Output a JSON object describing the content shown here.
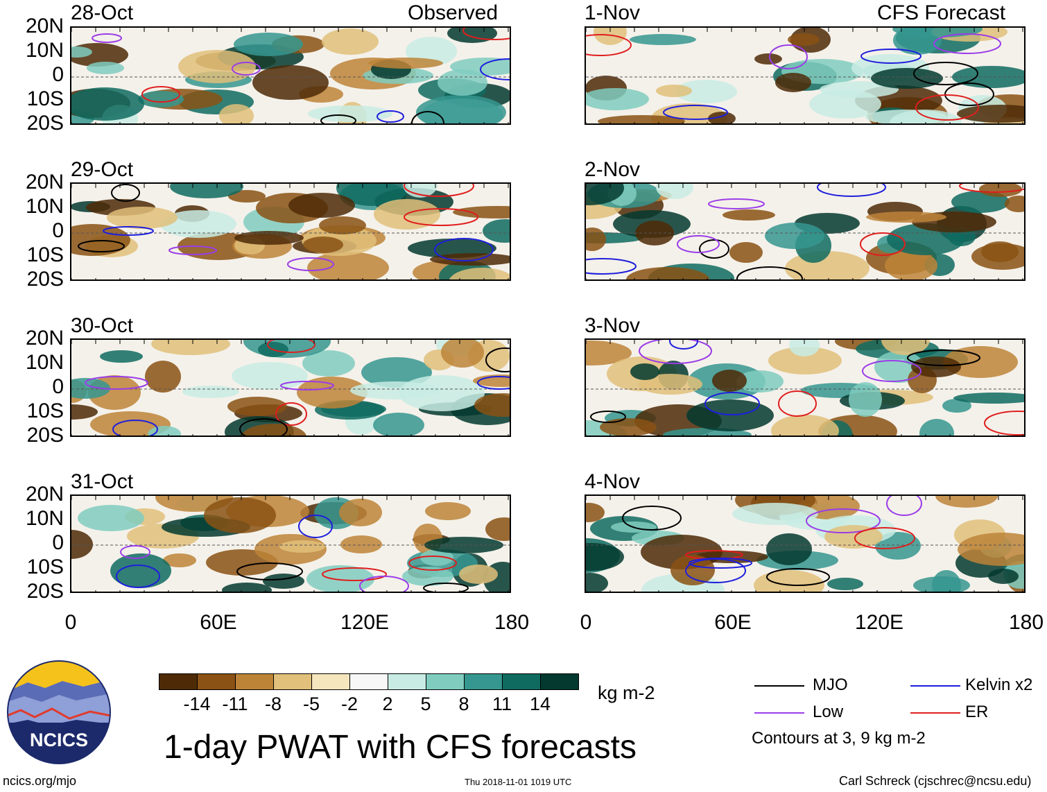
{
  "observed_label": "Observed",
  "forecast_label": "CFS Forecast",
  "panels_left": [
    {
      "date": "28-Oct"
    },
    {
      "date": "29-Oct"
    },
    {
      "date": "30-Oct"
    },
    {
      "date": "31-Oct"
    }
  ],
  "panels_right": [
    {
      "date": "1-Nov"
    },
    {
      "date": "2-Nov"
    },
    {
      "date": "3-Nov"
    },
    {
      "date": "4-Nov"
    }
  ],
  "lat_labels": [
    "20N",
    "10N",
    "0",
    "10S",
    "20S"
  ],
  "lon_labels": [
    "0",
    "60E",
    "120E",
    "180"
  ],
  "colorbar": {
    "colors": [
      "#4e2a07",
      "#8a5214",
      "#bd8438",
      "#e0c07a",
      "#f6e6bd",
      "#f7f7f7",
      "#c8ece4",
      "#80cdc0",
      "#35978f",
      "#0f6b60",
      "#03392f"
    ],
    "labels": [
      "-14",
      "-11",
      "-8",
      "-5",
      "-2",
      "2",
      "5",
      "8",
      "11",
      "14"
    ],
    "units": "kg m-2"
  },
  "legend": {
    "mjo": {
      "label": "MJO",
      "color": "#000000"
    },
    "kelvin": {
      "label": "Kelvin x2",
      "color": "#1e1edc"
    },
    "low": {
      "label": "Low",
      "color": "#9b3ce8"
    },
    "er": {
      "label": "ER",
      "color": "#e01e1e"
    },
    "note": "Contours at 3, 9 kg m-2"
  },
  "logo_text": "NCICS",
  "title": "1-day PWAT with CFS forecasts",
  "footer_left": "ncics.org/mjo",
  "footer_center": "Thu 2018-11-01 1019 UTC",
  "footer_right": "Carl Schreck (cjschrec@ncsu.edu)"
}
